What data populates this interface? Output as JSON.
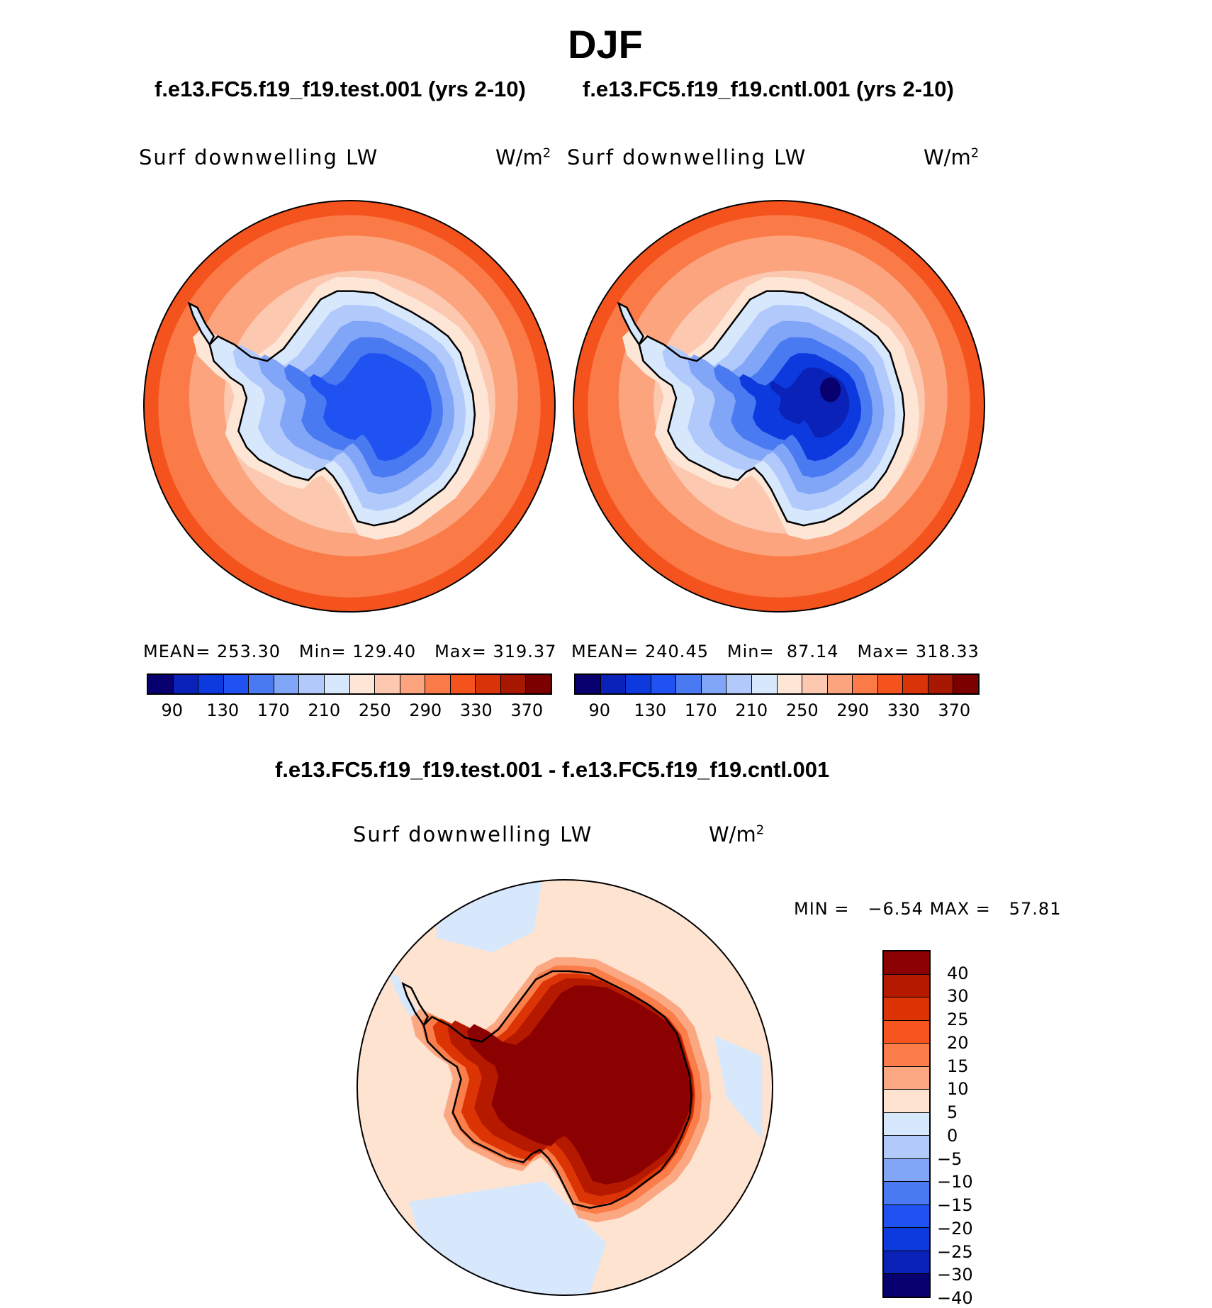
{
  "title": "DJF",
  "panels": {
    "test": {
      "case_title": "f.e13.FC5.f19_f19.test.001 (yrs 2-10)",
      "variable": "Surf downwelling LW",
      "units_base": "W/m",
      "units_exp": "2",
      "mean_label": "MEAN=",
      "mean": "253.30",
      "min_label": "Min=",
      "min": "129.40",
      "max_label": "Max=",
      "max": "319.37"
    },
    "cntl": {
      "case_title": "f.e13.FC5.f19_f19.cntl.001 (yrs 2-10)",
      "variable": "Surf downwelling LW",
      "units_base": "W/m",
      "units_exp": "2",
      "mean_label": "MEAN=",
      "mean": "240.45",
      "min_label": "Min=",
      "min": "87.14",
      "max_label": "Max=",
      "max": "318.33"
    },
    "diff": {
      "case_title": "f.e13.FC5.f19_f19.test.001 - f.e13.FC5.f19_f19.cntl.001",
      "variable": "Surf downwelling LW",
      "units_base": "W/m",
      "units_exp": "2",
      "min_label": "MIN =",
      "min": "−6.54",
      "max_label": "MAX =",
      "max": "57.81"
    }
  },
  "abs_colorbar": {
    "colors": [
      "#08006e",
      "#0a22b8",
      "#0c3ade",
      "#1f52f0",
      "#4a7af2",
      "#82a6f7",
      "#b2c9fb",
      "#d8e8fc",
      "#fde6d6",
      "#fcc8b0",
      "#fba47e",
      "#fa7a48",
      "#f5531e",
      "#d83408",
      "#a81800",
      "#7c0000"
    ],
    "labels": [
      "90",
      "130",
      "170",
      "210",
      "250",
      "290",
      "330",
      "370"
    ]
  },
  "diff_colorbar": {
    "colors_top_to_bottom": [
      "#8b0000",
      "#b51a00",
      "#dd3405",
      "#f75520",
      "#fa7d4a",
      "#fba882",
      "#fde3d0",
      "#d8e8fc",
      "#b2c9fb",
      "#82a6f7",
      "#4a7af2",
      "#1f52f0",
      "#0c3ade",
      "#0a22b8",
      "#08006e"
    ],
    "labels_top_to_bottom": [
      "40",
      "30",
      "25",
      "20",
      "15",
      "10",
      "5",
      "0",
      "−5",
      "−10",
      "−15",
      "−20",
      "−25",
      "−30",
      "−40"
    ]
  },
  "map_colors": {
    "ocean_far": "#fa7a48",
    "ocean_mid": "#fba47e",
    "ocean_near": "#fcc8b0",
    "ice_edge": "#fde6d6",
    "coast": "#d8e8fc",
    "interior_1": "#b2c9fb",
    "interior_2": "#82a6f7",
    "interior_3": "#4a7af2",
    "interior_4": "#1f52f0",
    "interior_5": "#0c3ade",
    "interior_6": "#08006e",
    "diff_bg": "#fde3d0",
    "diff_neg": "#d8e8fc",
    "diff_high": "#8b0000",
    "diff_mid": "#dd3405",
    "diff_low": "#fa7d4a"
  }
}
